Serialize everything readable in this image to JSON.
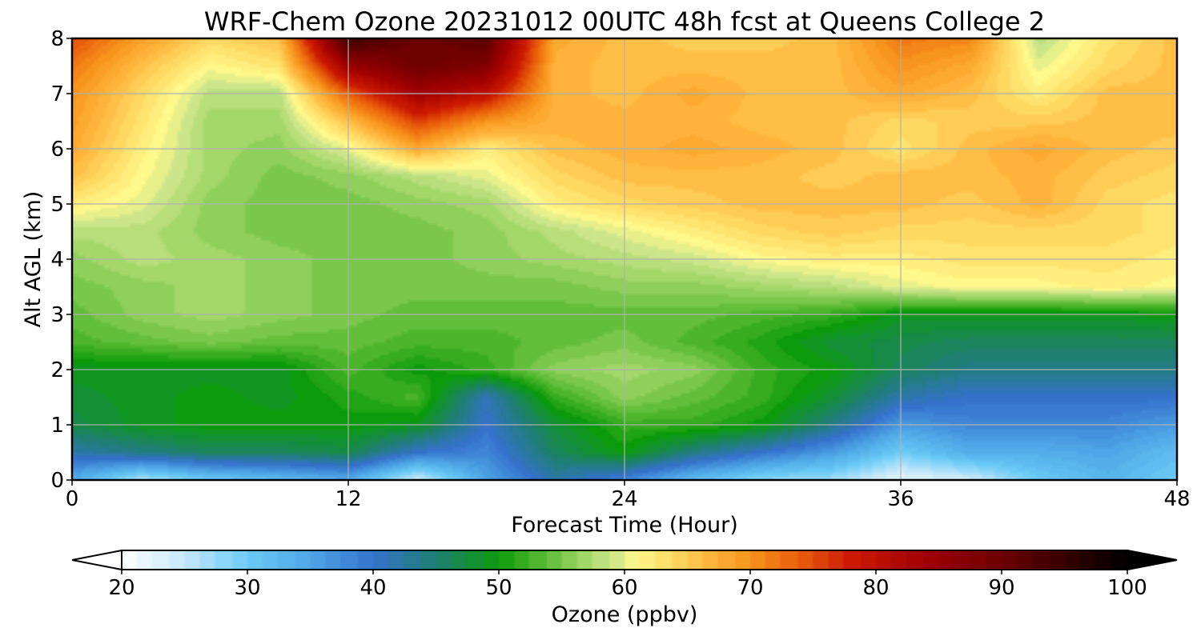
{
  "chart_data": {
    "type": "heatmap",
    "title": "WRF-Chem Ozone  20231012 00UTC 48h fcst at Queens College 2",
    "xlabel": "Forecast Time (Hour)",
    "ylabel": "Alt AGL (km)",
    "xlim": [
      0,
      48
    ],
    "ylim": [
      0,
      8
    ],
    "xticks": [
      0,
      12,
      24,
      36,
      48
    ],
    "yticks": [
      0,
      1,
      2,
      3,
      4,
      5,
      6,
      7,
      8
    ],
    "grid": true,
    "colorbar": {
      "label": "Ozone  (ppbv)",
      "min": 20,
      "max": 100,
      "ticks": [
        20,
        30,
        40,
        50,
        60,
        70,
        80,
        90,
        100
      ],
      "extend": "both",
      "stops": [
        [
          20,
          "#ffffff"
        ],
        [
          25,
          "#c6e8fb"
        ],
        [
          30,
          "#6ccbf7"
        ],
        [
          35,
          "#4ea6e6"
        ],
        [
          40,
          "#3572cc"
        ],
        [
          45,
          "#1f7f72"
        ],
        [
          50,
          "#0a9a0a"
        ],
        [
          53,
          "#4db52c"
        ],
        [
          56,
          "#8fd05a"
        ],
        [
          59,
          "#cde58a"
        ],
        [
          61,
          "#fff88a"
        ],
        [
          64,
          "#ffd862"
        ],
        [
          67,
          "#ffb33a"
        ],
        [
          70,
          "#f7941d"
        ],
        [
          74,
          "#e85c0a"
        ],
        [
          78,
          "#cc1a00"
        ],
        [
          84,
          "#a10000"
        ],
        [
          90,
          "#6e0000"
        ],
        [
          96,
          "#2b0000"
        ],
        [
          100,
          "#000000"
        ]
      ]
    },
    "x": [
      0,
      3,
      6,
      9,
      12,
      15,
      18,
      21,
      24,
      27,
      30,
      33,
      36,
      39,
      42,
      45,
      48
    ],
    "y": [
      0,
      0.5,
      1,
      1.5,
      2,
      2.5,
      3,
      3.5,
      4,
      4.5,
      5,
      5.5,
      6,
      6.5,
      7,
      7.5,
      8
    ],
    "z": [
      [
        34,
        26,
        30,
        32,
        34,
        24,
        35,
        42,
        38,
        32,
        28,
        27,
        22,
        24,
        30,
        33,
        30
      ],
      [
        42,
        44,
        46,
        46,
        47,
        40,
        38,
        46,
        50,
        44,
        40,
        36,
        30,
        34,
        34,
        35,
        32
      ],
      [
        47,
        49,
        50,
        50,
        50,
        49,
        40,
        48,
        52,
        52,
        50,
        44,
        36,
        38,
        38,
        38,
        36
      ],
      [
        48,
        49,
        50,
        49,
        51,
        53,
        41,
        52,
        56,
        54,
        52,
        48,
        42,
        40,
        40,
        40,
        40
      ],
      [
        49,
        49,
        49,
        49,
        53,
        50,
        52,
        56,
        57,
        56,
        52,
        50,
        46,
        44,
        44,
        44,
        44
      ],
      [
        53,
        54,
        55,
        54,
        54,
        53,
        53,
        54,
        55,
        53,
        51,
        48,
        47,
        46,
        46,
        46,
        46
      ],
      [
        54,
        56,
        57,
        56,
        55,
        54,
        54,
        54,
        54,
        54,
        53,
        52,
        49,
        49,
        49,
        49,
        50
      ],
      [
        55,
        56,
        57,
        56,
        55,
        55,
        55,
        55,
        56,
        56,
        57,
        58,
        60,
        61,
        61,
        62,
        61
      ],
      [
        56,
        58,
        57,
        56,
        55,
        55,
        56,
        57,
        58,
        59,
        61,
        62,
        62,
        63,
        63,
        63,
        62
      ],
      [
        58,
        58,
        56,
        55,
        55,
        55,
        56,
        58,
        60,
        62,
        64,
        65,
        64,
        64,
        64,
        64,
        63
      ],
      [
        62,
        60,
        56,
        55,
        55,
        56,
        57,
        62,
        64,
        65,
        66,
        66,
        66,
        65,
        67,
        64,
        63
      ],
      [
        66,
        61,
        57,
        55,
        56,
        58,
        60,
        64,
        66,
        66,
        66,
        65,
        66,
        66,
        67,
        65,
        64
      ],
      [
        68,
        62,
        57,
        56,
        60,
        68,
        62,
        66,
        67,
        68,
        67,
        66,
        63,
        66,
        68,
        66,
        65
      ],
      [
        69,
        63,
        57,
        57,
        66,
        76,
        70,
        67,
        67,
        67,
        66,
        66,
        64,
        65,
        65,
        66,
        66
      ],
      [
        70,
        64,
        58,
        58,
        74,
        84,
        80,
        67,
        66,
        68,
        66,
        66,
        68,
        66,
        62,
        66,
        66
      ],
      [
        72,
        66,
        61,
        63,
        85,
        90,
        88,
        67,
        66,
        66,
        66,
        66,
        70,
        68,
        60,
        64,
        66
      ],
      [
        75,
        69,
        64,
        66,
        95,
        90,
        92,
        68,
        66,
        65,
        65,
        66,
        72,
        71,
        58,
        63,
        66
      ]
    ]
  }
}
